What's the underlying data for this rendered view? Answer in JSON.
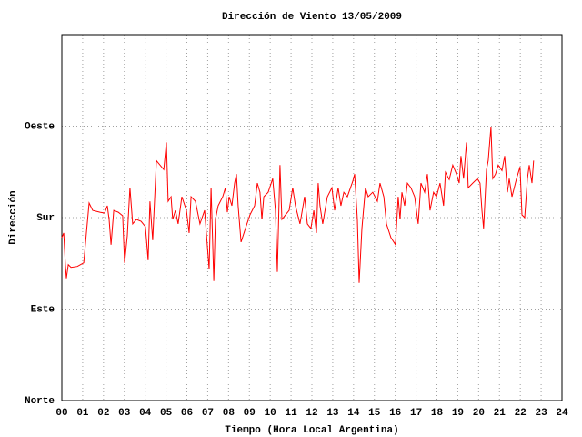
{
  "chart_data": {
    "type": "line",
    "title": "Dirección de Viento 13/05/2009",
    "x_label": "Tiempo (Hora Local Argentina)",
    "y_label": "Dirección",
    "x": [
      0,
      0.09,
      0.17,
      0.22,
      0.31,
      0.44,
      0.74,
      1.05,
      1.18,
      1.31,
      1.48,
      1.83,
      2.05,
      2.18,
      2.27,
      2.36,
      2.49,
      2.71,
      2.92,
      3.01,
      3.14,
      3.27,
      3.4,
      3.58,
      3.8,
      4.01,
      4.14,
      4.23,
      4.36,
      4.54,
      4.89,
      5.02,
      5.1,
      5.24,
      5.32,
      5.45,
      5.58,
      5.76,
      5.98,
      6.11,
      6.2,
      6.41,
      6.63,
      6.85,
      7.07,
      7.16,
      7.29,
      7.37,
      7.5,
      7.72,
      7.85,
      7.94,
      8.03,
      8.16,
      8.29,
      8.38,
      8.46,
      8.6,
      8.81,
      9.03,
      9.25,
      9.38,
      9.51,
      9.6,
      9.69,
      9.9,
      10.12,
      10.25,
      10.34,
      10.47,
      10.56,
      10.91,
      11.08,
      11.21,
      11.43,
      11.65,
      11.78,
      11.95,
      12.09,
      12.22,
      12.3,
      12.39,
      12.52,
      12.74,
      12.96,
      13.09,
      13.26,
      13.39,
      13.53,
      13.7,
      13.96,
      14.05,
      14.18,
      14.27,
      14.4,
      14.57,
      14.7,
      14.92,
      15.14,
      15.27,
      15.45,
      15.58,
      15.79,
      16.01,
      16.14,
      16.23,
      16.32,
      16.45,
      16.58,
      16.75,
      16.93,
      17.1,
      17.23,
      17.41,
      17.54,
      17.67,
      17.84,
      17.98,
      18.15,
      18.32,
      18.41,
      18.59,
      18.76,
      18.94,
      19.07,
      19.15,
      19.28,
      19.42,
      19.5,
      19.72,
      19.94,
      20.07,
      20.16,
      20.24,
      20.38,
      20.46,
      20.59,
      20.68,
      20.81,
      20.94,
      21.12,
      21.25,
      21.38,
      21.47,
      21.6,
      21.82,
      21.99,
      22.08,
      22.21,
      22.34,
      22.43,
      22.56,
      22.64
    ],
    "series": [
      {
        "color": "#ff0000",
        "values": [
          160.4,
          164.9,
          133.7,
          120.3,
          133.7,
          131,
          131.9,
          135.5,
          164.9,
          194.3,
          187.1,
          185.3,
          184.5,
          191.6,
          178.2,
          153.3,
          187.1,
          185.3,
          181.8,
          135.5,
          162.2,
          209.4,
          173.8,
          178.2,
          176.4,
          171.1,
          138.1,
          196,
          157.7,
          236.1,
          227.2,
          254,
          196,
          200.5,
          178.2,
          187.1,
          173.8,
          200.5,
          187.1,
          164.9,
          200.5,
          196,
          173.8,
          187.1,
          129.2,
          209.4,
          117.6,
          178.2,
          191.6,
          200.5,
          209.4,
          185.3,
          200.5,
          191.6,
          213.9,
          222.8,
          191.6,
          155.9,
          169.3,
          182.7,
          191.6,
          213.9,
          204.9,
          178.2,
          200.5,
          204.9,
          218.3,
          187.1,
          126.5,
          231.7,
          178.2,
          187.1,
          209.4,
          191.6,
          173.8,
          200.5,
          173.8,
          169.3,
          187.1,
          164.9,
          213.9,
          191.6,
          173.8,
          200.5,
          209.4,
          187.1,
          209.4,
          191.6,
          204.9,
          200.5,
          215.6,
          222.8,
          178.2,
          115.8,
          169.3,
          209.4,
          200.5,
          204.9,
          196,
          213.9,
          200.5,
          173.8,
          160.4,
          153.3,
          200.5,
          178.2,
          204.9,
          191.6,
          213.9,
          209.4,
          200.5,
          173.8,
          213.9,
          204.9,
          222.8,
          187.1,
          204.9,
          200.5,
          213.9,
          191.6,
          224.6,
          217.4,
          231.7,
          222.8,
          213.9,
          240.6,
          218.3,
          254,
          209.4,
          213.9,
          218.3,
          213.9,
          187.1,
          169.3,
          227.2,
          236.1,
          269.1,
          218.3,
          222.8,
          231.7,
          226.3,
          240.6,
          204.9,
          218.3,
          200.5,
          218.3,
          229.9,
          182.7,
          180,
          218.3,
          231.7,
          213.9,
          236.1
        ]
      }
    ],
    "xlim": [
      0,
      24
    ],
    "xticks": [
      {
        "value": 0,
        "label": "00"
      },
      {
        "value": 1,
        "label": "01"
      },
      {
        "value": 2,
        "label": "02"
      },
      {
        "value": 3,
        "label": "03"
      },
      {
        "value": 4,
        "label": "04"
      },
      {
        "value": 5,
        "label": "05"
      },
      {
        "value": 6,
        "label": "06"
      },
      {
        "value": 7,
        "label": "07"
      },
      {
        "value": 8,
        "label": "08"
      },
      {
        "value": 9,
        "label": "09"
      },
      10,
      11,
      12,
      13,
      14,
      15,
      16,
      17,
      18,
      19,
      20,
      21,
      22,
      23,
      24
    ],
    "ylim": [
      0,
      360
    ],
    "yticks": [
      {
        "value": 0,
        "label": "Norte"
      },
      {
        "value": 90,
        "label": "Este"
      },
      {
        "value": 180,
        "label": "Sur"
      },
      {
        "value": 270,
        "label": "Oeste"
      }
    ],
    "grid": true
  }
}
